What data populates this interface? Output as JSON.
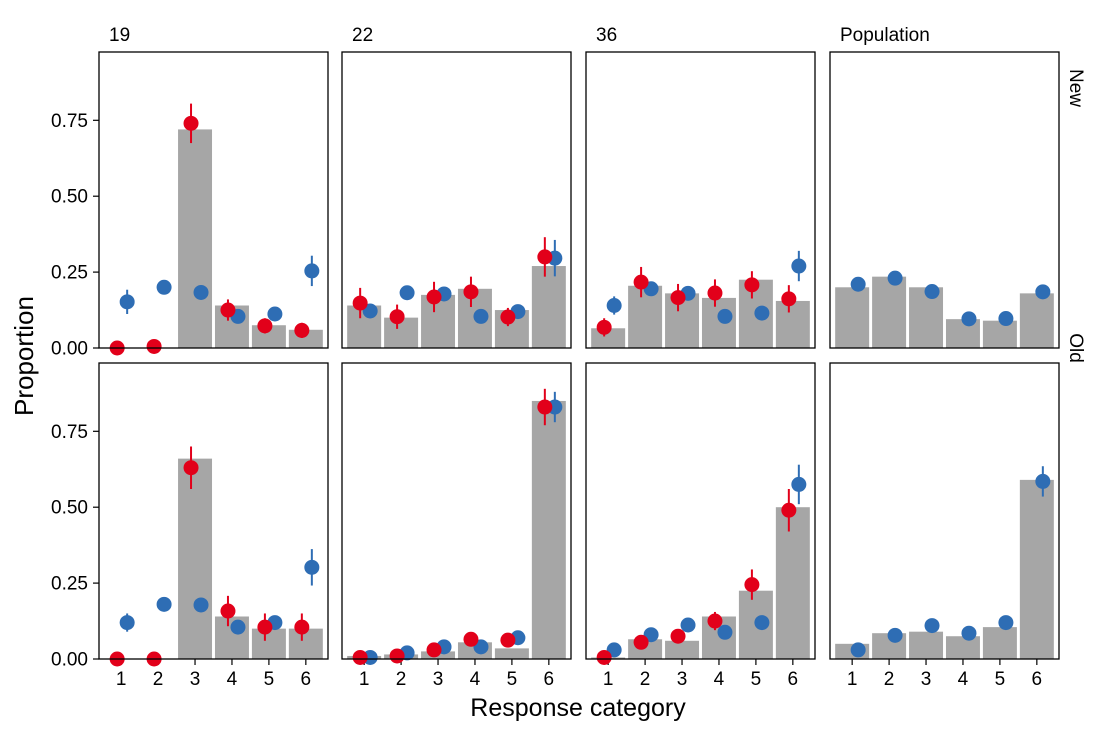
{
  "chart_data": {
    "type": "bar",
    "title": "",
    "xlabel": "Response category",
    "ylabel": "Proportion",
    "categories": [
      "1",
      "2",
      "3",
      "4",
      "5",
      "6"
    ],
    "ylim": [
      0,
      0.975
    ],
    "yticks": [
      "0.00",
      "0.25",
      "0.50",
      "0.75"
    ],
    "columns": [
      "19",
      "22",
      "36",
      "Population"
    ],
    "rows": [
      "New",
      "Old"
    ],
    "colors": {
      "bar": "#a6a6a6",
      "blue": "#2e6db4",
      "red": "#e2001a"
    },
    "legend": "none",
    "grid": false,
    "panels": [
      {
        "column": "19",
        "row": "New",
        "bars": [
          0.0,
          0.0,
          0.72,
          0.14,
          0.075,
          0.06
        ],
        "blue": [
          0.152,
          0.2,
          0.183,
          0.104,
          0.112,
          0.254
        ],
        "blue_err": [
          0.04,
          0,
          0,
          0,
          0,
          0.05
        ],
        "red": [
          0.0,
          0.005,
          0.74,
          0.125,
          0.073,
          0.058
        ],
        "red_err": [
          0,
          0,
          0.065,
          0.035,
          0.025,
          0.025
        ]
      },
      {
        "column": "22",
        "row": "New",
        "bars": [
          0.14,
          0.1,
          0.175,
          0.195,
          0.125,
          0.27
        ],
        "blue": [
          0.122,
          0.182,
          0.178,
          0.104,
          0.12,
          0.296
        ],
        "blue_err": [
          0,
          0,
          0,
          0,
          0,
          0.06
        ],
        "red": [
          0.148,
          0.103,
          0.168,
          0.185,
          0.102,
          0.3
        ],
        "red_err": [
          0.05,
          0.04,
          0.05,
          0.05,
          0.03,
          0.065
        ]
      },
      {
        "column": "36",
        "row": "New",
        "bars": [
          0.065,
          0.205,
          0.18,
          0.165,
          0.225,
          0.155
        ],
        "blue": [
          0.14,
          0.195,
          0.18,
          0.104,
          0.115,
          0.27
        ],
        "blue_err": [
          0.03,
          0,
          0,
          0,
          0,
          0.05
        ],
        "red": [
          0.068,
          0.217,
          0.166,
          0.181,
          0.208,
          0.162
        ],
        "red_err": [
          0.03,
          0.05,
          0.045,
          0.045,
          0.045,
          0.045
        ]
      },
      {
        "column": "Population",
        "row": "New",
        "bars": [
          0.2,
          0.235,
          0.2,
          0.095,
          0.09,
          0.18
        ],
        "blue": [
          0.21,
          0.23,
          0.186,
          0.096,
          0.097,
          0.185
        ],
        "blue_err": [
          0,
          0,
          0,
          0,
          0,
          0
        ]
      },
      {
        "column": "19",
        "row": "Old",
        "bars": [
          0.0,
          0.0,
          0.66,
          0.14,
          0.1,
          0.1
        ],
        "blue": [
          0.12,
          0.18,
          0.178,
          0.105,
          0.12,
          0.302
        ],
        "blue_err": [
          0.03,
          0,
          0,
          0,
          0,
          0.06
        ],
        "red": [
          0.0,
          0.0,
          0.63,
          0.158,
          0.105,
          0.105
        ],
        "red_err": [
          0,
          0,
          0.07,
          0.05,
          0.045,
          0.045
        ]
      },
      {
        "column": "22",
        "row": "Old",
        "bars": [
          0.01,
          0.015,
          0.025,
          0.055,
          0.035,
          0.85
        ],
        "blue": [
          0.005,
          0.02,
          0.04,
          0.04,
          0.07,
          0.83
        ],
        "blue_err": [
          0,
          0,
          0,
          0,
          0,
          0.05
        ],
        "red": [
          0.005,
          0.01,
          0.03,
          0.065,
          0.062,
          0.83
        ],
        "red_err": [
          0,
          0,
          0,
          0,
          0,
          0.06
        ]
      },
      {
        "column": "36",
        "row": "Old",
        "bars": [
          0.005,
          0.065,
          0.06,
          0.14,
          0.225,
          0.5
        ],
        "blue": [
          0.03,
          0.08,
          0.112,
          0.088,
          0.12,
          0.575
        ],
        "blue_err": [
          0,
          0,
          0,
          0,
          0,
          0.065
        ],
        "red": [
          0.005,
          0.055,
          0.075,
          0.125,
          0.245,
          0.49
        ],
        "red_err": [
          0,
          0,
          0,
          0.03,
          0.05,
          0.07
        ]
      },
      {
        "column": "Population",
        "row": "Old",
        "bars": [
          0.05,
          0.085,
          0.09,
          0.075,
          0.105,
          0.59
        ],
        "blue": [
          0.03,
          0.078,
          0.11,
          0.085,
          0.12,
          0.585
        ],
        "blue_err": [
          0,
          0,
          0,
          0,
          0,
          0.05
        ]
      }
    ]
  }
}
